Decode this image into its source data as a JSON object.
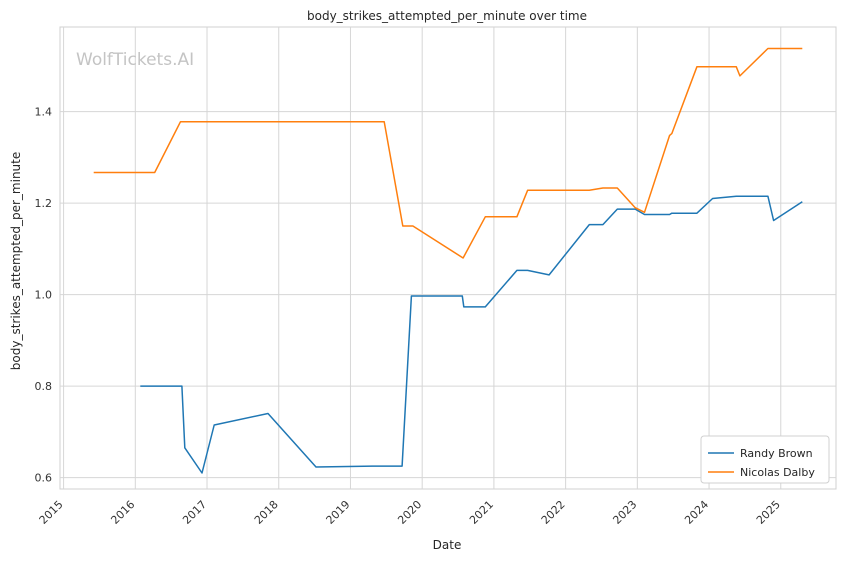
{
  "watermark": "WolfTickets.AI",
  "chart_data": {
    "type": "line",
    "title": "body_strikes_attempted_per_minute over time",
    "xlabel": "Date",
    "ylabel": "body_strikes_attempted_per_minute",
    "x_ticks": [
      "2015",
      "2016",
      "2017",
      "2018",
      "2019",
      "2020",
      "2021",
      "2022",
      "2023",
      "2024",
      "2025"
    ],
    "y_ticks": [
      "0.6",
      "0.8",
      "1.0",
      "1.2",
      "1.4"
    ],
    "xlim": [
      2014.95,
      2025.77
    ],
    "ylim": [
      0.575,
      1.585
    ],
    "grid": true,
    "legend_position": "bottom-right",
    "series": [
      {
        "name": "Randy Brown",
        "color": "#1f77b4",
        "points": [
          [
            2016.07,
            0.8
          ],
          [
            2016.65,
            0.8
          ],
          [
            2016.69,
            0.665
          ],
          [
            2016.93,
            0.61
          ],
          [
            2017.1,
            0.715
          ],
          [
            2017.85,
            0.74
          ],
          [
            2018.52,
            0.623
          ],
          [
            2019.3,
            0.625
          ],
          [
            2019.72,
            0.625
          ],
          [
            2019.85,
            0.997
          ],
          [
            2020.56,
            0.997
          ],
          [
            2020.58,
            0.973
          ],
          [
            2020.88,
            0.973
          ],
          [
            2021.32,
            1.053
          ],
          [
            2021.47,
            1.053
          ],
          [
            2021.77,
            1.043
          ],
          [
            2022.33,
            1.153
          ],
          [
            2022.52,
            1.153
          ],
          [
            2022.72,
            1.187
          ],
          [
            2022.97,
            1.187
          ],
          [
            2023.1,
            1.175
          ],
          [
            2023.45,
            1.175
          ],
          [
            2023.48,
            1.178
          ],
          [
            2023.83,
            1.178
          ],
          [
            2024.05,
            1.21
          ],
          [
            2024.38,
            1.215
          ],
          [
            2024.82,
            1.215
          ],
          [
            2024.9,
            1.162
          ],
          [
            2025.3,
            1.203
          ]
        ]
      },
      {
        "name": "Nicolas Dalby",
        "color": "#ff7f0e",
        "points": [
          [
            2015.42,
            1.267
          ],
          [
            2016.27,
            1.267
          ],
          [
            2016.63,
            1.378
          ],
          [
            2019.47,
            1.378
          ],
          [
            2019.73,
            1.15
          ],
          [
            2019.87,
            1.15
          ],
          [
            2020.57,
            1.08
          ],
          [
            2020.88,
            1.17
          ],
          [
            2021.32,
            1.17
          ],
          [
            2021.47,
            1.228
          ],
          [
            2022.33,
            1.228
          ],
          [
            2022.52,
            1.233
          ],
          [
            2022.72,
            1.233
          ],
          [
            2022.97,
            1.19
          ],
          [
            2023.1,
            1.18
          ],
          [
            2023.45,
            1.348
          ],
          [
            2023.48,
            1.352
          ],
          [
            2023.83,
            1.498
          ],
          [
            2024.38,
            1.498
          ],
          [
            2024.43,
            1.478
          ],
          [
            2024.82,
            1.538
          ],
          [
            2025.3,
            1.538
          ]
        ]
      }
    ]
  }
}
